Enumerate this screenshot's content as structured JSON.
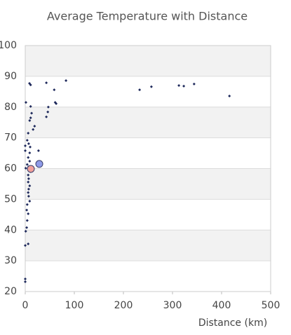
{
  "chart_data": {
    "type": "scatter",
    "title": "Average Temperature with Distance",
    "x_label": "Distance (km)",
    "xlim": [
      0,
      500
    ],
    "xticks": [
      0,
      100,
      200,
      300,
      400,
      500
    ],
    "ylim": [
      20,
      100
    ],
    "yticks": [
      20,
      30,
      40,
      50,
      60,
      70,
      80,
      90,
      100
    ],
    "grid": true,
    "band_color": "#f2f2f2",
    "series": [
      {
        "color": "#1f2a5c",
        "marker": "diamond",
        "x": [
          8.6,
          11,
          43,
          83,
          59,
          47,
          63,
          61,
          46,
          43,
          233,
          257,
          313,
          323,
          344,
          416,
          1.4,
          11,
          13,
          11,
          16,
          19,
          9,
          6,
          4,
          7,
          10,
          27,
          9,
          6,
          9,
          4,
          7,
          11,
          6,
          7,
          6,
          9,
          7,
          6,
          7,
          9,
          4,
          3,
          6,
          4,
          3,
          1,
          6,
          0,
          0,
          0,
          0,
          0,
          1
        ],
        "values": [
          87.7,
          87.2,
          87.9,
          88.6,
          85.6,
          80,
          81.1,
          81.5,
          78.4,
          76.8,
          85.6,
          86.6,
          87,
          86.8,
          87.5,
          83.6,
          81.5,
          80.2,
          78,
          76.5,
          72.7,
          73.8,
          75.6,
          71.5,
          69.2,
          68.1,
          67,
          65.8,
          65.1,
          63.6,
          62.4,
          61.3,
          60.6,
          59,
          57.9,
          56.7,
          55.6,
          54.4,
          53.3,
          52.2,
          51,
          49.4,
          48.3,
          46.5,
          45.3,
          43.1,
          40.8,
          39.6,
          35.5,
          35,
          24.1,
          23.2,
          67.4,
          65.8,
          60.1
        ]
      },
      {
        "color": "#8f9be8",
        "marker": "circle",
        "x": [
          28.6
        ],
        "values": [
          61.5
        ]
      },
      {
        "color": "#f2a09a",
        "marker": "circle",
        "x": [
          11.4
        ],
        "values": [
          59.9
        ]
      }
    ]
  }
}
